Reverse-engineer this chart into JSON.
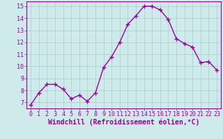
{
  "x": [
    0,
    1,
    2,
    3,
    4,
    5,
    6,
    7,
    8,
    9,
    10,
    11,
    12,
    13,
    14,
    15,
    16,
    17,
    18,
    19,
    20,
    21,
    22,
    23
  ],
  "y": [
    6.8,
    7.8,
    8.5,
    8.5,
    8.1,
    7.3,
    7.6,
    7.1,
    7.8,
    9.9,
    10.8,
    12.0,
    13.5,
    14.2,
    15.0,
    15.0,
    14.7,
    13.9,
    12.3,
    11.9,
    11.6,
    10.3,
    10.4,
    9.7
  ],
  "line_color": "#990099",
  "marker": "+",
  "marker_size": 4,
  "marker_linewidth": 1.0,
  "xlabel": "Windchill (Refroidissement éolien,°C)",
  "xlabel_fontsize": 7,
  "background_color": "#ceeaea",
  "grid_color": "#aacccc",
  "ylim": [
    6.5,
    15.4
  ],
  "xlim": [
    -0.5,
    23.5
  ],
  "yticks": [
    7,
    8,
    9,
    10,
    11,
    12,
    13,
    14,
    15
  ],
  "xticks": [
    0,
    1,
    2,
    3,
    4,
    5,
    6,
    7,
    8,
    9,
    10,
    11,
    12,
    13,
    14,
    15,
    16,
    17,
    18,
    19,
    20,
    21,
    22,
    23
  ],
  "tick_fontsize": 6,
  "line_width": 1.0,
  "axis_color": "#990099",
  "spine_color": "#990099",
  "figsize": [
    3.2,
    2.0
  ],
  "dpi": 100
}
